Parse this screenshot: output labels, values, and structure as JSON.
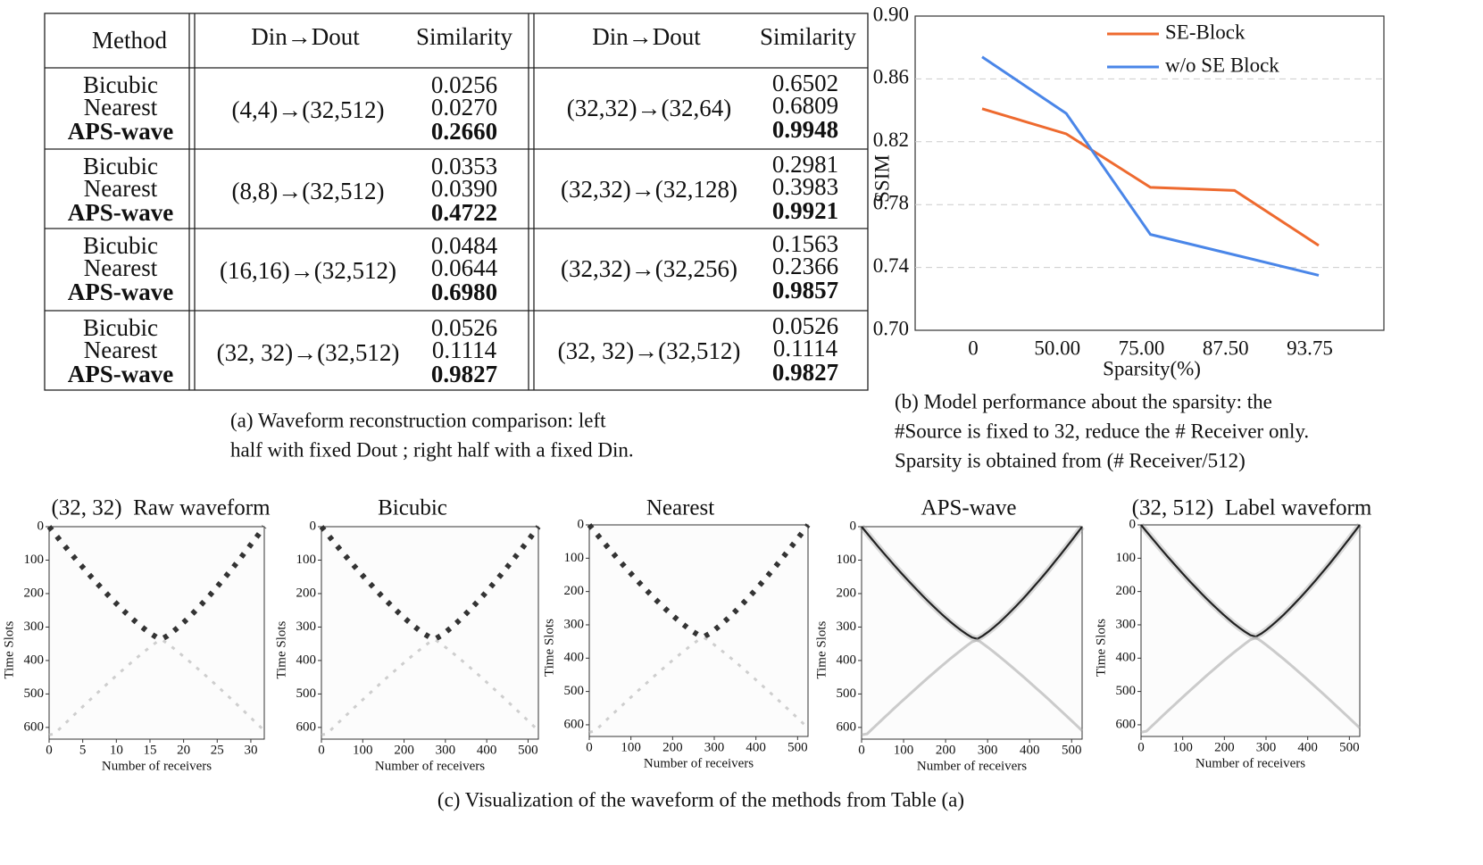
{
  "table": {
    "header": [
      "Method",
      "Din→Dout",
      "Similarity",
      "Din→Dout",
      "Similarity"
    ],
    "rows": [
      {
        "methods": [
          "Bicubic",
          "Nearest",
          "APS-wave"
        ],
        "left_dims": "(4,4)→(32,512)",
        "left_sims": [
          "0.0256",
          "0.0270",
          "0.2660"
        ],
        "right_dims": "(32,32)→(32,64)",
        "right_sims": [
          "0.6502",
          "0.6809",
          "0.9948"
        ]
      },
      {
        "methods": [
          "Bicubic",
          "Nearest",
          "APS-wave"
        ],
        "left_dims": "(8,8)→(32,512)",
        "left_sims": [
          "0.0353",
          "0.0390",
          "0.4722"
        ],
        "right_dims": "(32,32)→(32,128)",
        "right_sims": [
          "0.2981",
          "0.3983",
          "0.9921"
        ]
      },
      {
        "methods": [
          "Bicubic",
          "Nearest",
          "APS-wave"
        ],
        "left_dims": "(16,16)→(32,512)",
        "left_sims": [
          "0.0484",
          "0.0644",
          "0.6980"
        ],
        "right_dims": "(32,32)→(32,256)",
        "right_sims": [
          "0.1563",
          "0.2366",
          "0.9857"
        ]
      },
      {
        "methods": [
          "Bicubic",
          "Nearest",
          "APS-wave"
        ],
        "left_dims": "(32, 32)→(32,512)",
        "left_sims": [
          "0.0526",
          "0.1114",
          "0.9827"
        ],
        "right_dims": "(32, 32)→(32,512)",
        "right_sims": [
          "0.0526",
          "0.1114",
          "0.9827"
        ]
      }
    ]
  },
  "chart_data": {
    "type": "line",
    "ylabel": "SSIM",
    "xlabel": "Sparsity(%)",
    "categories": [
      "0",
      "50.00",
      "75.00",
      "87.50",
      "93.75"
    ],
    "series": [
      {
        "name": "SE-Block",
        "color": "#ee6a2f",
        "values": [
          0.841,
          0.825,
          0.791,
          0.789,
          0.754
        ]
      },
      {
        "name": "w/o SE Block",
        "color": "#4a86e8",
        "values": [
          0.874,
          0.838,
          0.761,
          0.748,
          0.735
        ]
      }
    ],
    "ylim": [
      0.7,
      0.9
    ],
    "yticks": [
      {
        "value": 0.7,
        "label": "0.70"
      },
      {
        "value": 0.74,
        "label": "0.74"
      },
      {
        "value": 0.78,
        "label": "0.78"
      },
      {
        "value": 0.82,
        "label": "0.82"
      },
      {
        "value": 0.86,
        "label": "0.86"
      },
      {
        "value": 0.9,
        "label": "0.90"
      }
    ],
    "grid": true,
    "legend": "top"
  },
  "captions": {
    "a": [
      "(a) Waveform reconstruction comparison: left",
      "half with fixed Dout ; right half with a fixed Din."
    ],
    "b": [
      "(b) Model performance about the sparsity: the",
      "#Source is fixed to 32, reduce the # Receiver only.",
      "Sparsity is obtained from (# Receiver/512)"
    ],
    "c": "(c) Visualization of the waveform of the methods from Table (a)"
  },
  "panels": [
    {
      "title": "(32, 32)  Raw waveform",
      "xlim": [
        0,
        32
      ],
      "ylim": [
        0,
        635
      ],
      "xticks": [
        0,
        5,
        10,
        15,
        20,
        25,
        30
      ],
      "yticks": [
        0,
        100,
        200,
        300,
        400,
        500,
        600
      ],
      "xlabel": "Number of receivers",
      "ylabel": "Time Slots"
    },
    {
      "title": "Bicubic",
      "xlim": [
        0,
        525
      ],
      "ylim": [
        0,
        635
      ],
      "xticks": [
        0,
        100,
        200,
        300,
        400,
        500
      ],
      "yticks": [
        0,
        100,
        200,
        300,
        400,
        500,
        600
      ],
      "xlabel": "Number of receivers",
      "ylabel": "Time Slots"
    },
    {
      "title": "Nearest",
      "xlim": [
        0,
        525
      ],
      "ylim": [
        0,
        635
      ],
      "xticks": [
        0,
        100,
        200,
        300,
        400,
        500
      ],
      "yticks": [
        0,
        100,
        200,
        300,
        400,
        500,
        600
      ],
      "xlabel": "Number of receivers",
      "ylabel": "Time Slots"
    },
    {
      "title": "APS-wave",
      "xlim": [
        0,
        525
      ],
      "ylim": [
        0,
        635
      ],
      "xticks": [
        0,
        100,
        200,
        300,
        400,
        500
      ],
      "yticks": [
        0,
        100,
        200,
        300,
        400,
        500,
        600
      ],
      "xlabel": "Number of receivers",
      "ylabel": "Time Slots"
    },
    {
      "title": "(32, 512)  Label waveform",
      "xlim": [
        0,
        525
      ],
      "ylim": [
        0,
        635
      ],
      "xticks": [
        0,
        100,
        200,
        300,
        400,
        500
      ],
      "yticks": [
        0,
        100,
        200,
        300,
        400,
        500,
        600
      ],
      "xlabel": "Number of receivers",
      "ylabel": "Time Slots"
    }
  ]
}
